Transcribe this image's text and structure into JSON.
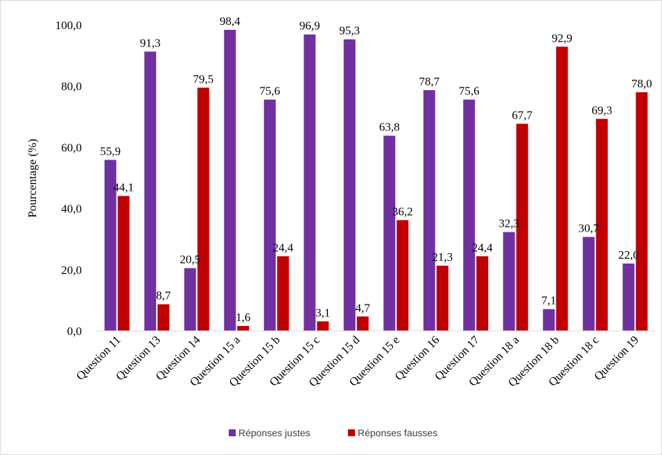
{
  "chart_data": {
    "type": "bar",
    "title": "",
    "xlabel": "",
    "ylabel": "Pourcentage (%)",
    "ylim": [
      0,
      100
    ],
    "yticks": [
      "0,0",
      "20,0",
      "40,0",
      "60,0",
      "80,0",
      "100,0"
    ],
    "ytick_values": [
      0,
      20,
      40,
      60,
      80,
      100
    ],
    "grid": false,
    "legend_position": "bottom",
    "categories": [
      "Question 11",
      "Question 13",
      "Question 14",
      "Question 15 a",
      "Question 15 b",
      "Question 15 c",
      "Question 15 d",
      "Question 15 e",
      "Question 16",
      "Question 17",
      "Question 18 a",
      "Question 18 b",
      "Question 18 c",
      "Question 19"
    ],
    "series": [
      {
        "name": "Réponses justes",
        "color": "#7030a0",
        "values": [
          55.9,
          91.3,
          20.5,
          98.4,
          75.6,
          96.9,
          95.3,
          63.8,
          78.7,
          75.6,
          32.3,
          7.1,
          30.7,
          22.0
        ],
        "labels": [
          "55,9",
          "91,3",
          "20,5",
          "98,4",
          "75,6",
          "96,9",
          "95,3",
          "63,8",
          "78,7",
          "75,6",
          "32,3",
          "7,1",
          "30,7",
          "22,0"
        ]
      },
      {
        "name": "Réponses fausses",
        "color": "#c00000",
        "values": [
          44.1,
          8.7,
          79.5,
          1.6,
          24.4,
          3.1,
          4.7,
          36.2,
          21.3,
          24.4,
          67.7,
          92.9,
          69.3,
          78.0
        ],
        "labels": [
          "44,1",
          "8,7",
          "79,5",
          "1,6",
          "24,4",
          "3,1",
          "4,7",
          "36,2",
          "21,3",
          "24,4",
          "67,7",
          "92,9",
          "69,3",
          "78,0"
        ]
      }
    ]
  }
}
